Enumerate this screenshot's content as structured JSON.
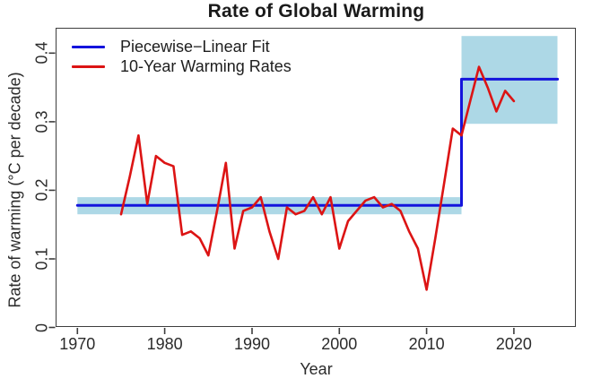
{
  "title": "Rate of Global Warming",
  "legend": {
    "items": [
      {
        "label": "Piecewise−Linear Fit",
        "color": "#1414dc"
      },
      {
        "label": "10-Year Warming Rates",
        "color": "#dc1414"
      }
    ]
  },
  "x_axis": {
    "label": "Year",
    "ticks": [
      "1970",
      "1980",
      "1990",
      "2000",
      "2010",
      "2020"
    ],
    "tick_values": [
      1970,
      1980,
      1990,
      2000,
      2010,
      2020
    ]
  },
  "y_axis": {
    "label": "Rate of warming (°C per decade)",
    "ticks": [
      "0",
      "0.1",
      "0.2",
      "0.3",
      "0.4"
    ],
    "tick_values": [
      0,
      0.1,
      0.2,
      0.3,
      0.4
    ]
  },
  "colors": {
    "fit_line": "#1414dc",
    "rates_line": "#dc1414",
    "confidence_band": "#add8e6",
    "axis": "#3d3d3d",
    "background": "#ffffff"
  },
  "chart_data": {
    "type": "line",
    "title": "Rate of Global Warming",
    "xlabel": "Year",
    "ylabel": "Rate of warming (°C per decade)",
    "xlim": [
      1967.5,
      2027.1
    ],
    "ylim": [
      0,
      0.437
    ],
    "grid": false,
    "legend_position": "top-left",
    "bands": [
      {
        "name": "fit-confidence-band-1970-2014",
        "x_start": 1970,
        "x_end": 2014,
        "y_low": 0.165,
        "y_high": 0.19,
        "color": "#add8e6"
      },
      {
        "name": "fit-confidence-band-2014-2025",
        "x_start": 2014,
        "x_end": 2025,
        "y_low": 0.297,
        "y_high": 0.425,
        "color": "#add8e6"
      }
    ],
    "series": [
      {
        "name": "Piecewise-Linear Fit",
        "color": "#1414dc",
        "width": 3,
        "x": [
          1970,
          2014,
          2014,
          2025
        ],
        "y": [
          0.178,
          0.178,
          0.362,
          0.362
        ]
      },
      {
        "name": "10-Year Warming Rates",
        "color": "#dc1414",
        "width": 2.6,
        "x": [
          1975,
          1976,
          1977,
          1978,
          1979,
          1980,
          1981,
          1982,
          1983,
          1984,
          1985,
          1986,
          1987,
          1988,
          1989,
          1990,
          1991,
          1992,
          1993,
          1994,
          1995,
          1996,
          1997,
          1998,
          1999,
          2000,
          2001,
          2002,
          2003,
          2004,
          2005,
          2006,
          2007,
          2008,
          2009,
          2010,
          2011,
          2012,
          2013,
          2014,
          2015,
          2016,
          2017,
          2018,
          2019,
          2020
        ],
        "y": [
          0.165,
          0.22,
          0.28,
          0.18,
          0.25,
          0.24,
          0.235,
          0.135,
          0.14,
          0.13,
          0.105,
          0.17,
          0.24,
          0.115,
          0.17,
          0.175,
          0.19,
          0.14,
          0.1,
          0.175,
          0.165,
          0.17,
          0.19,
          0.165,
          0.19,
          0.115,
          0.155,
          0.17,
          0.185,
          0.19,
          0.175,
          0.18,
          0.17,
          0.14,
          0.115,
          0.055,
          0.13,
          0.21,
          0.29,
          0.28,
          0.33,
          0.38,
          0.35,
          0.315,
          0.345,
          0.33
        ]
      }
    ]
  }
}
